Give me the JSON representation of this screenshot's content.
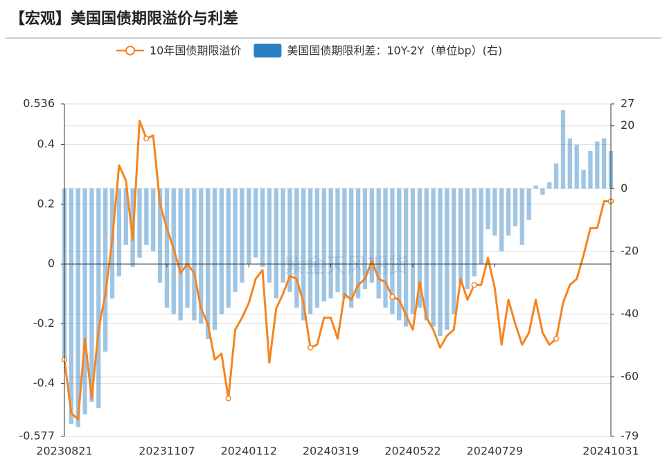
{
  "chart_data": {
    "type": "combo",
    "title": "【宏观】美国国债期限溢价与利差",
    "watermark": "紫金天风期货",
    "legend": "top",
    "grid": true,
    "categories": [
      "20230821",
      null,
      null,
      null,
      null,
      null,
      null,
      null,
      null,
      null,
      null,
      null,
      null,
      null,
      null,
      "20231107",
      null,
      null,
      null,
      null,
      null,
      null,
      null,
      null,
      null,
      null,
      null,
      "20240112",
      null,
      null,
      null,
      null,
      null,
      null,
      null,
      null,
      null,
      null,
      null,
      "20240319",
      null,
      null,
      null,
      null,
      null,
      null,
      null,
      null,
      null,
      null,
      null,
      "20240522",
      null,
      null,
      null,
      null,
      null,
      null,
      null,
      null,
      null,
      null,
      null,
      "20240729",
      null,
      null,
      null,
      null,
      null,
      null,
      null,
      null,
      null,
      null,
      null,
      null,
      null,
      null,
      null,
      null,
      "20241031"
    ],
    "ylim": [
      -0.577,
      0.536
    ],
    "yticks": [
      -0.577,
      -0.4,
      -0.2,
      0,
      0.2,
      0.4,
      0.536
    ],
    "y2lim": [
      -79,
      27
    ],
    "y2ticks": [
      -79,
      -60,
      -40,
      -20,
      0,
      20,
      27
    ],
    "series": [
      {
        "name": "10年国债期限溢价",
        "type": "line",
        "color": "#f5841f",
        "values": [
          -0.32,
          -0.5,
          -0.52,
          -0.25,
          -0.45,
          -0.22,
          -0.1,
          0.08,
          0.33,
          0.28,
          0.08,
          0.48,
          0.42,
          0.43,
          0.2,
          0.12,
          0.05,
          -0.03,
          0.0,
          -0.03,
          -0.15,
          -0.2,
          -0.32,
          -0.3,
          -0.45,
          -0.22,
          -0.18,
          -0.13,
          -0.05,
          -0.02,
          -0.33,
          -0.15,
          -0.1,
          -0.04,
          -0.05,
          -0.13,
          -0.28,
          -0.27,
          -0.18,
          -0.18,
          -0.25,
          -0.1,
          -0.12,
          -0.07,
          -0.05,
          0.01,
          -0.05,
          -0.06,
          -0.11,
          -0.12,
          -0.17,
          -0.22,
          -0.06,
          -0.18,
          -0.22,
          -0.28,
          -0.24,
          -0.22,
          -0.05,
          -0.12,
          -0.07,
          -0.07,
          0.02,
          -0.08,
          -0.27,
          -0.12,
          -0.2,
          -0.27,
          -0.23,
          -0.12,
          -0.23,
          -0.27,
          -0.25,
          -0.13,
          -0.07,
          -0.05,
          0.03,
          0.12,
          0.12,
          0.21,
          0.21
        ]
      },
      {
        "name": "美国国债期限利差：10Y-2Y（单位bp）(右)",
        "type": "bar",
        "axis": "y2",
        "color": "#2b7fc0",
        "values": [
          -55,
          -75,
          -76,
          -72,
          -68,
          -70,
          -52,
          -35,
          -28,
          -18,
          -25,
          -22,
          -18,
          -20,
          -30,
          -38,
          -40,
          -42,
          -38,
          -42,
          -43,
          -48,
          -45,
          -40,
          -38,
          -33,
          -30,
          -24,
          -22,
          -25,
          -30,
          -35,
          -30,
          -33,
          -38,
          -42,
          -40,
          -38,
          -36,
          -35,
          -33,
          -35,
          -38,
          -35,
          -32,
          -30,
          -35,
          -38,
          -40,
          -42,
          -44,
          -40,
          -38,
          -42,
          -44,
          -47,
          -45,
          -40,
          -30,
          -32,
          -28,
          -24,
          -13,
          -15,
          -20,
          -15,
          -12,
          -18,
          -10,
          1,
          -2,
          2,
          8,
          25,
          16,
          14,
          6,
          12,
          15,
          16,
          12
        ]
      }
    ]
  }
}
